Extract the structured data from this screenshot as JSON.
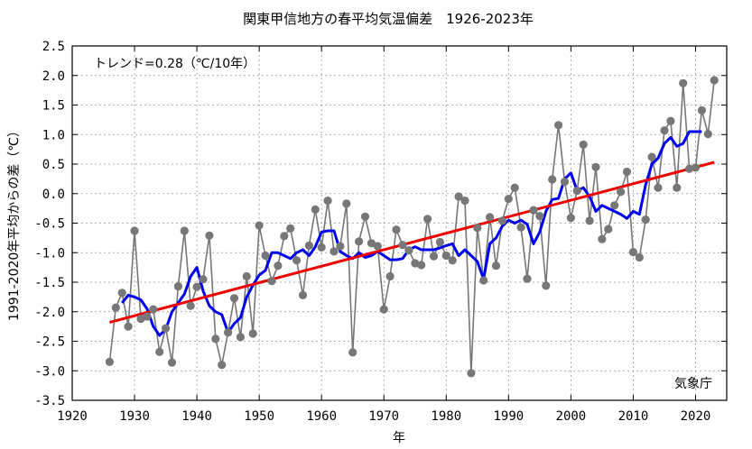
{
  "chart_data": {
    "type": "line",
    "title": "関東甲信地方の春平均気温偏差　1926-2023年",
    "xlabel": "年",
    "ylabel": "1991-2020年平均からの差（℃）",
    "xlim": [
      1920,
      2025
    ],
    "ylim": [
      -3.5,
      2.5
    ],
    "xticks": [
      1920,
      1930,
      1940,
      1950,
      1960,
      1970,
      1980,
      1990,
      2000,
      2010,
      2020
    ],
    "yticks": [
      "-3.5",
      "-3.0",
      "-2.5",
      "-2.0",
      "-1.5",
      "-1.0",
      "-0.5",
      "0.0",
      "0.5",
      "1.0",
      "1.5",
      "2.0",
      "2.5"
    ],
    "grid": true,
    "trend_label": "トレンド=0.28（℃/10年）",
    "source_label": "気象庁",
    "colors": {
      "annual": "#777777",
      "moving_average": "#0000ee",
      "trend": "#ee0000"
    },
    "series": [
      {
        "role": "annual",
        "x": [
          1926,
          1927,
          1928,
          1929,
          1930,
          1931,
          1932,
          1933,
          1934,
          1935,
          1936,
          1937,
          1938,
          1939,
          1940,
          1941,
          1942,
          1943,
          1944,
          1945,
          1946,
          1947,
          1948,
          1949,
          1950,
          1951,
          1952,
          1953,
          1954,
          1955,
          1956,
          1957,
          1958,
          1959,
          1960,
          1961,
          1962,
          1963,
          1964,
          1965,
          1966,
          1967,
          1968,
          1969,
          1970,
          1971,
          1972,
          1973,
          1974,
          1975,
          1976,
          1977,
          1978,
          1979,
          1980,
          1981,
          1982,
          1983,
          1984,
          1985,
          1986,
          1987,
          1988,
          1989,
          1990,
          1991,
          1992,
          1993,
          1994,
          1995,
          1996,
          1997,
          1998,
          1999,
          2000,
          2001,
          2002,
          2003,
          2004,
          2005,
          2006,
          2007,
          2008,
          2009,
          2010,
          2011,
          2012,
          2013,
          2014,
          2015,
          2016,
          2017,
          2018,
          2019,
          2020,
          2021,
          2022,
          2023
        ],
        "y": [
          -2.85,
          -1.93,
          -1.68,
          -2.25,
          -0.63,
          -2.12,
          -2.08,
          -1.96,
          -2.68,
          -2.28,
          -2.86,
          -1.57,
          -0.63,
          -1.9,
          -1.58,
          -1.45,
          -0.71,
          -2.46,
          -2.9,
          -2.35,
          -1.77,
          -2.43,
          -1.4,
          -2.37,
          -0.54,
          -1.05,
          -1.48,
          -1.22,
          -0.72,
          -0.59,
          -1.13,
          -1.72,
          -0.88,
          -0.27,
          -0.91,
          -0.12,
          -0.98,
          -0.89,
          -0.17,
          -2.69,
          -0.81,
          -0.39,
          -0.84,
          -0.89,
          -1.96,
          -1.4,
          -0.61,
          -0.87,
          -0.96,
          -1.18,
          -1.21,
          -0.43,
          -1.06,
          -0.82,
          -1.05,
          -1.13,
          -0.05,
          -0.12,
          -3.04,
          -0.58,
          -1.47,
          -0.4,
          -1.22,
          -0.46,
          -0.09,
          0.1,
          -0.57,
          -1.44,
          -0.28,
          -0.38,
          -1.56,
          0.24,
          1.16,
          0.2,
          -0.41,
          0.05,
          0.83,
          -0.46,
          0.45,
          -0.77,
          -0.6,
          -0.2,
          0.03,
          0.37,
          -0.99,
          -1.08,
          -0.44,
          0.62,
          0.1,
          1.07,
          1.23,
          0.1,
          1.87,
          0.42,
          0.44,
          1.41,
          1.01,
          1.92
        ]
      },
      {
        "role": "moving_average",
        "x": [
          1928,
          1929,
          1930,
          1931,
          1932,
          1933,
          1934,
          1935,
          1936,
          1937,
          1938,
          1939,
          1940,
          1941,
          1942,
          1943,
          1944,
          1945,
          1946,
          1947,
          1948,
          1949,
          1950,
          1951,
          1952,
          1953,
          1954,
          1955,
          1956,
          1957,
          1958,
          1959,
          1960,
          1961,
          1962,
          1963,
          1964,
          1965,
          1966,
          1967,
          1968,
          1969,
          1970,
          1971,
          1972,
          1973,
          1974,
          1975,
          1976,
          1977,
          1978,
          1979,
          1980,
          1981,
          1982,
          1983,
          1984,
          1985,
          1986,
          1987,
          1988,
          1989,
          1990,
          1991,
          1992,
          1993,
          1994,
          1995,
          1996,
          1997,
          1998,
          1999,
          2000,
          2001,
          2002,
          2003,
          2004,
          2005,
          2006,
          2007,
          2008,
          2009,
          2010,
          2011,
          2012,
          2013,
          2014,
          2015,
          2016,
          2017,
          2018,
          2019,
          2020,
          2021
        ],
        "y": [
          -1.85,
          -1.72,
          -1.75,
          -1.8,
          -1.95,
          -2.25,
          -2.4,
          -2.3,
          -2.0,
          -1.85,
          -1.7,
          -1.4,
          -1.25,
          -1.65,
          -1.9,
          -2.0,
          -2.05,
          -2.35,
          -2.2,
          -2.1,
          -1.75,
          -1.55,
          -1.38,
          -1.3,
          -1.0,
          -1.0,
          -1.05,
          -1.1,
          -1.0,
          -0.95,
          -1.05,
          -0.9,
          -0.65,
          -0.63,
          -0.63,
          -0.98,
          -1.05,
          -1.1,
          -1.0,
          -1.08,
          -1.05,
          -0.98,
          -1.05,
          -1.12,
          -1.12,
          -1.1,
          -0.95,
          -0.9,
          -0.95,
          -0.95,
          -0.95,
          -0.92,
          -0.88,
          -0.85,
          -1.05,
          -0.95,
          -1.05,
          -1.15,
          -1.45,
          -0.85,
          -0.75,
          -0.55,
          -0.45,
          -0.5,
          -0.45,
          -0.52,
          -0.85,
          -0.65,
          -0.3,
          -0.1,
          -0.08,
          0.25,
          0.35,
          0.05,
          0.1,
          -0.05,
          -0.3,
          -0.2,
          -0.25,
          -0.3,
          -0.35,
          -0.42,
          -0.3,
          -0.35,
          0.15,
          0.5,
          0.6,
          0.85,
          0.95,
          0.8,
          0.85,
          1.05,
          1.05,
          1.05
        ]
      },
      {
        "role": "trend",
        "x": [
          1926,
          2023
        ],
        "y": [
          -2.18,
          0.53
        ]
      }
    ]
  }
}
